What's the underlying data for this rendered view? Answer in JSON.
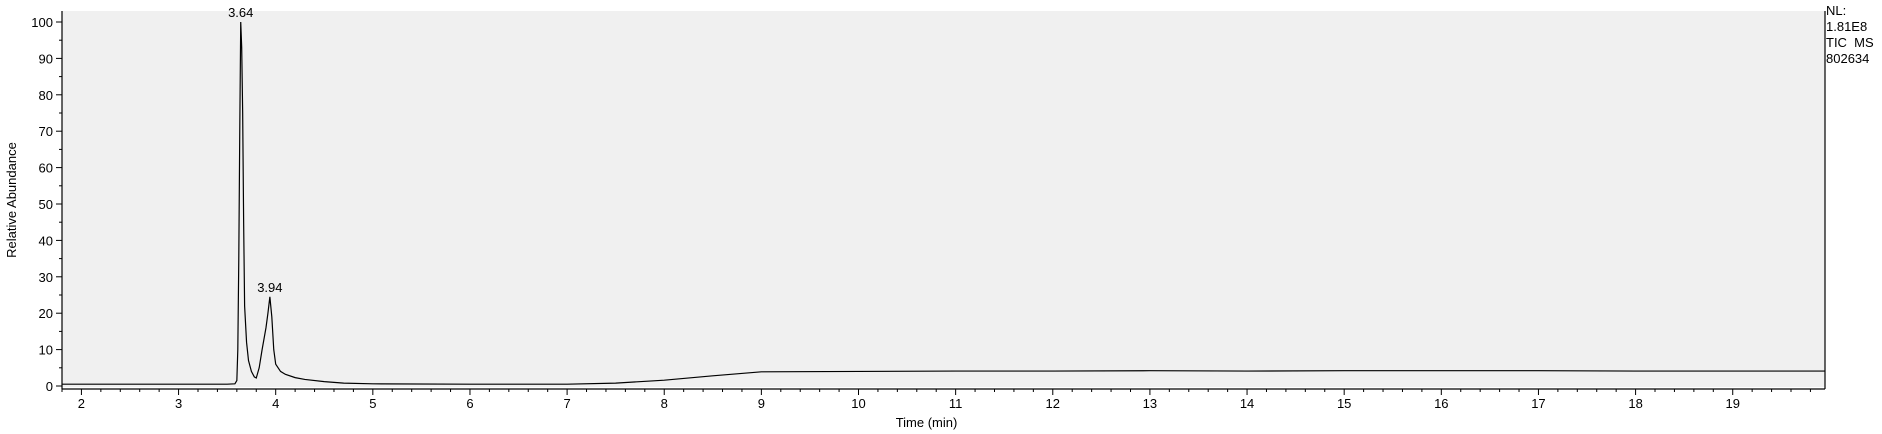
{
  "info": {
    "nl_label": "NL:",
    "nl_value": "1.81E8",
    "trace_type": "TIC  MS",
    "sample": "802634"
  },
  "chart_data": {
    "type": "line",
    "title": "",
    "xlabel": "Time (min)",
    "ylabel": "Relative Abundance",
    "xlim": [
      1.8,
      19.95
    ],
    "ylim": [
      0,
      100
    ],
    "xticks": [
      2,
      3,
      4,
      5,
      6,
      7,
      8,
      9,
      10,
      11,
      12,
      13,
      14,
      15,
      16,
      17,
      18,
      19
    ],
    "yticks": [
      0,
      10,
      20,
      30,
      40,
      50,
      60,
      70,
      80,
      90,
      100
    ],
    "grid": false,
    "background": "#f0f0f0",
    "line_color": "#000000",
    "peak_labels": [
      {
        "x": 3.64,
        "y": 100,
        "text": "3.64"
      },
      {
        "x": 3.94,
        "y": 24.5,
        "text": "3.94"
      }
    ],
    "series": [
      {
        "x": [
          1.8,
          2.0,
          2.5,
          3.0,
          3.3,
          3.5,
          3.58,
          3.6,
          3.61,
          3.62,
          3.63,
          3.64,
          3.65,
          3.66,
          3.67,
          3.68,
          3.7,
          3.72,
          3.75,
          3.78,
          3.8,
          3.83,
          3.86,
          3.9,
          3.92,
          3.94,
          3.96,
          3.98,
          4.0,
          4.05,
          4.1,
          4.2,
          4.3,
          4.5,
          4.7,
          5.0,
          6.0,
          7.0,
          7.5,
          8.0,
          8.5,
          9.0,
          10.0,
          11.0,
          12.0,
          13.0,
          14.0,
          15.0,
          16.0,
          17.0,
          18.0,
          19.0,
          19.95
        ],
        "y": [
          0.5,
          0.5,
          0.5,
          0.5,
          0.5,
          0.5,
          0.6,
          1.5,
          10,
          35,
          70,
          100,
          93,
          75,
          45,
          22,
          12,
          7,
          4,
          2.5,
          2.2,
          5,
          10,
          16,
          20,
          24.5,
          19,
          10,
          6,
          4,
          3.2,
          2.3,
          1.8,
          1.2,
          0.8,
          0.6,
          0.5,
          0.5,
          0.8,
          1.6,
          2.8,
          3.9,
          4.0,
          4.1,
          4.1,
          4.2,
          4.1,
          4.2,
          4.2,
          4.2,
          4.1,
          4.1,
          4.1
        ]
      }
    ]
  }
}
